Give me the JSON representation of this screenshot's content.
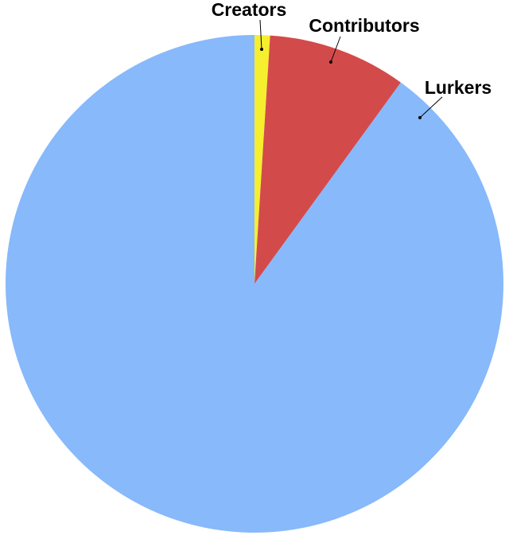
{
  "chart_data": {
    "type": "pie",
    "categories": [
      "Creators",
      "Contributors",
      "Lurkers"
    ],
    "values": [
      1,
      9,
      90
    ],
    "colors": [
      "#f5ef2f",
      "#d24b4a",
      "#87b9fb"
    ]
  }
}
